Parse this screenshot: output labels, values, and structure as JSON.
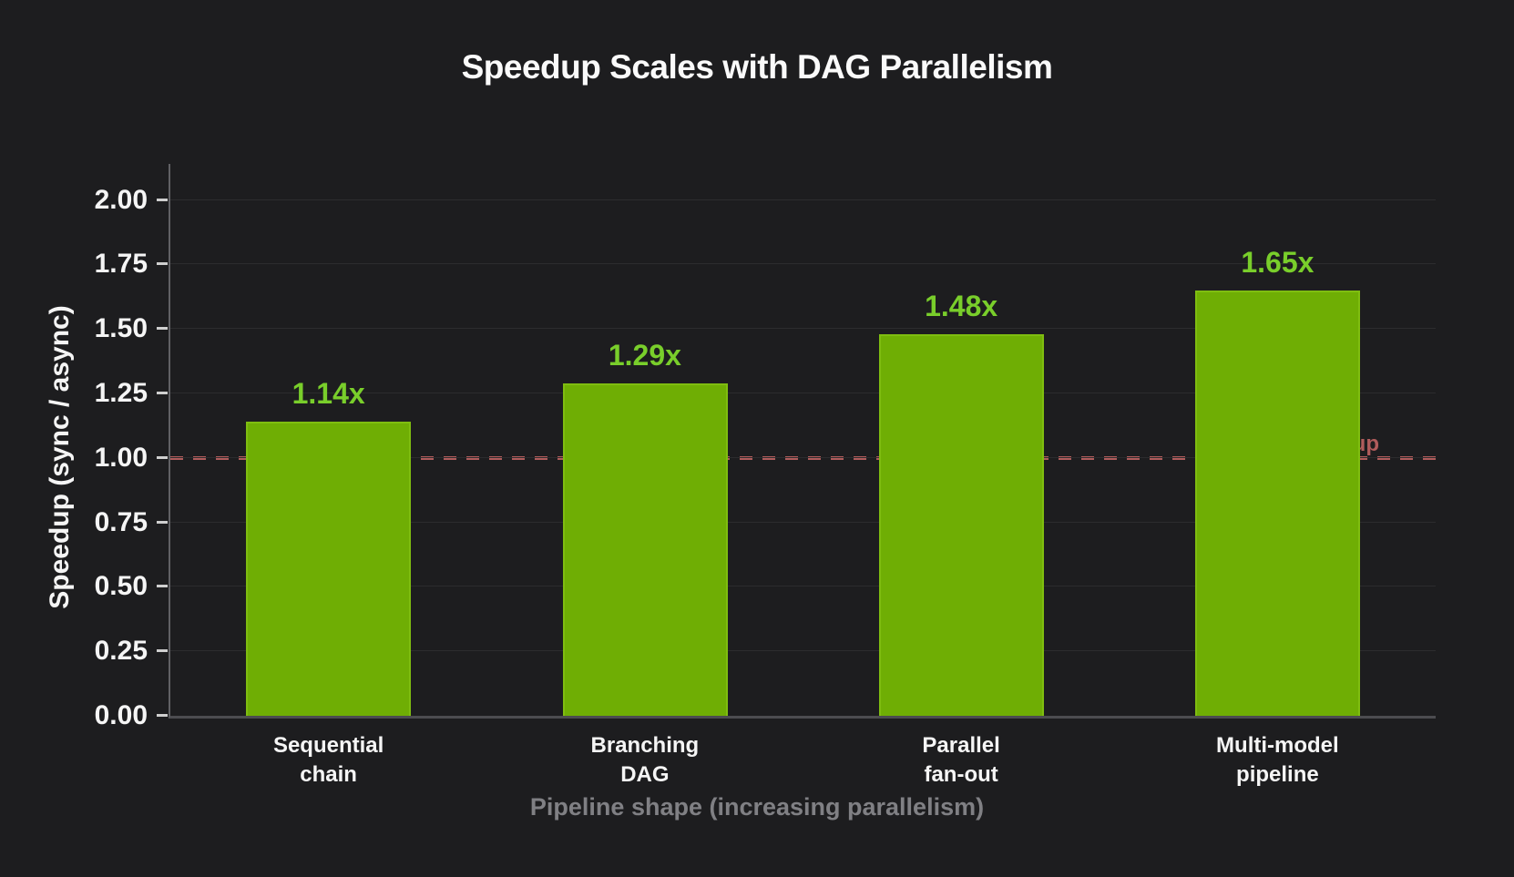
{
  "chart_data": {
    "type": "bar",
    "title": "Speedup Scales with DAG Parallelism",
    "xlabel": "Pipeline shape (increasing parallelism)",
    "ylabel": "Speedup (sync / async)",
    "categories": [
      "Sequential\nchain",
      "Branching\nDAG",
      "Parallel\nfan-out",
      "Multi-model\npipeline"
    ],
    "values": [
      1.14,
      1.29,
      1.48,
      1.65
    ],
    "value_labels": [
      "1.14x",
      "1.29x",
      "1.48x",
      "1.65x"
    ],
    "ylim": [
      0,
      2.0
    ],
    "ytick_step": 0.25,
    "yticks": [
      "0.00",
      "0.25",
      "0.50",
      "0.75",
      "1.00",
      "1.25",
      "1.50",
      "1.75",
      "2.00"
    ],
    "ymax_display": 2.14,
    "bar_width_frac": 0.52,
    "grid": true,
    "legend": "none",
    "reference_line": {
      "value": 1.0,
      "label": "no speedup",
      "style": "dashed"
    }
  },
  "colors": {
    "background": "#1d1d1f",
    "bar_fill": "#6fae04",
    "bar_edge": "#7fbd10",
    "value_label": "#79ce2b",
    "reference": "#b05c5c",
    "gridline": "#2c2c2e",
    "axis_y": "#606064",
    "axis_x": "#4c4c50",
    "tick_mark_color": "#cfcfcf",
    "tick_label": "#f5f5f5",
    "title_color": "#fafafa",
    "xlabel_color": "#808084"
  }
}
